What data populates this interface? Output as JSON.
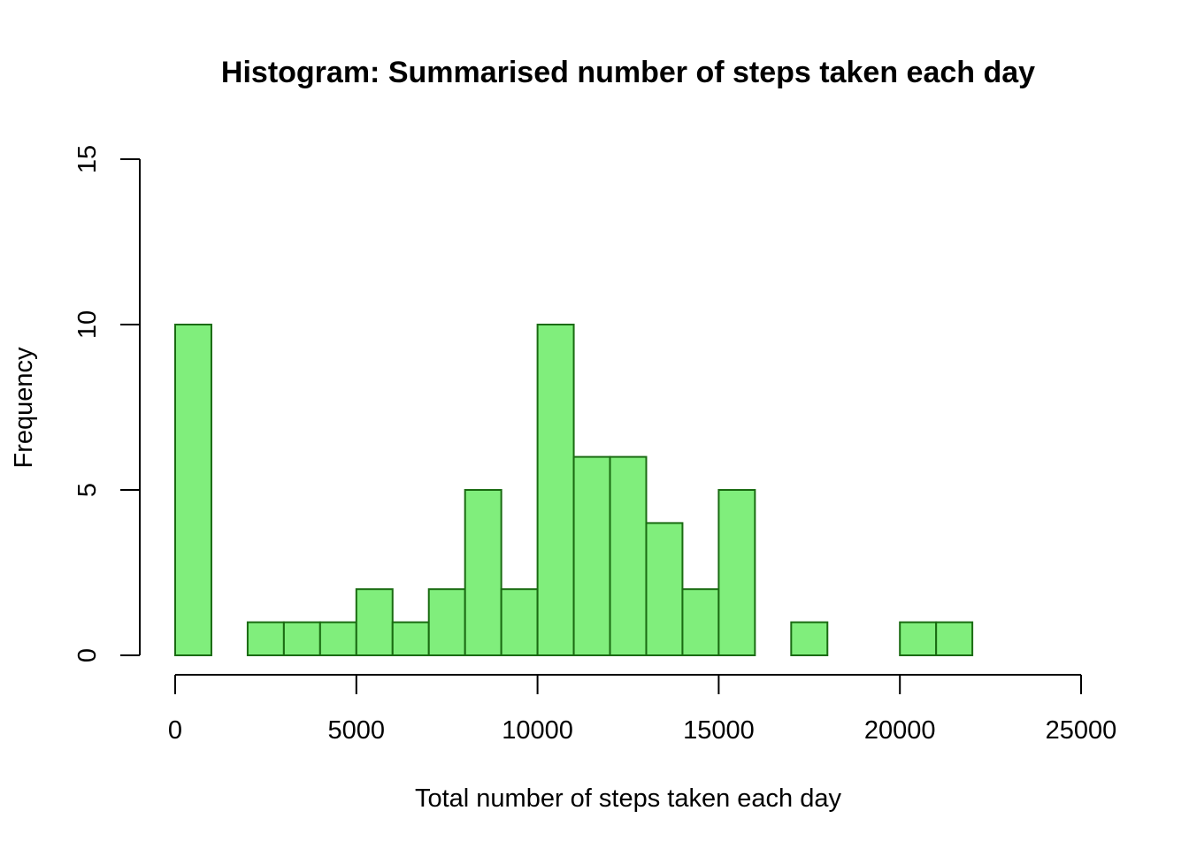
{
  "chart_data": {
    "type": "bar",
    "title": "Histogram: Summarised number of steps taken each day",
    "xlabel": "Total number of steps taken each day",
    "ylabel": "Frequency",
    "bin_width": 1000,
    "bin_starts": [
      0,
      1000,
      2000,
      3000,
      4000,
      5000,
      6000,
      7000,
      8000,
      9000,
      10000,
      11000,
      12000,
      13000,
      14000,
      15000,
      16000,
      17000,
      18000,
      19000,
      20000,
      21000
    ],
    "values": [
      10,
      0,
      1,
      1,
      1,
      2,
      1,
      2,
      5,
      2,
      10,
      6,
      6,
      4,
      2,
      5,
      0,
      1,
      0,
      0,
      1,
      1
    ],
    "xlim": [
      0,
      25000
    ],
    "ylim": [
      0,
      15
    ],
    "x_ticks": [
      "0",
      "5000",
      "10000",
      "15000",
      "20000",
      "25000"
    ],
    "y_ticks": [
      "0",
      "5",
      "10",
      "15"
    ],
    "bar_fill": "#80ee7c",
    "bar_stroke": "#1a6b12",
    "grid": false
  }
}
